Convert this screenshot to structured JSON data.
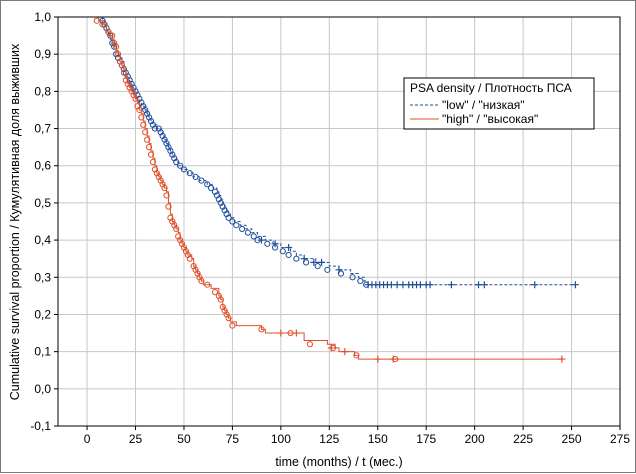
{
  "chart_data": {
    "type": "line",
    "xlabel": "time (months) / t (мес.)",
    "ylabel": "Cumulative survival proportion / Кумулятивная доля выживших",
    "xlim": [
      -15,
      275
    ],
    "ylim": [
      -0.1,
      1.0
    ],
    "x_ticks": [
      "0",
      "25",
      "50",
      "75",
      "100",
      "125",
      "150",
      "175",
      "200",
      "225",
      "250",
      "275"
    ],
    "y_ticks": [
      "-0,1",
      "0,0",
      "0,1",
      "0,2",
      "0,3",
      "0,4",
      "0,5",
      "0,6",
      "0,7",
      "0,8",
      "0,9",
      "1,0"
    ],
    "grid": true,
    "legend": {
      "title": "PSA density / Плотность ПСА",
      "placement": "top-right"
    },
    "series": [
      {
        "name": "\"low\" / \"низкая\"",
        "color": "#1f4e9c",
        "style": "dashed",
        "steps": [
          [
            0,
            1.0
          ],
          [
            8,
            1.0
          ],
          [
            8,
            0.99
          ],
          [
            9,
            0.98
          ],
          [
            10,
            0.96
          ],
          [
            11,
            0.95
          ],
          [
            12,
            0.94
          ],
          [
            13,
            0.93
          ],
          [
            14,
            0.92
          ],
          [
            15,
            0.91
          ],
          [
            16,
            0.9
          ],
          [
            17,
            0.89
          ],
          [
            18,
            0.88
          ],
          [
            19,
            0.86
          ],
          [
            20,
            0.84
          ],
          [
            21,
            0.83
          ],
          [
            22,
            0.82
          ],
          [
            23,
            0.81
          ],
          [
            24,
            0.8
          ],
          [
            25,
            0.79
          ],
          [
            26,
            0.78
          ],
          [
            27,
            0.77
          ],
          [
            28,
            0.76
          ],
          [
            30,
            0.75
          ],
          [
            31,
            0.74
          ],
          [
            32,
            0.73
          ],
          [
            33,
            0.72
          ],
          [
            34,
            0.71
          ],
          [
            36,
            0.7
          ],
          [
            38,
            0.69
          ],
          [
            39,
            0.68
          ],
          [
            40,
            0.67
          ],
          [
            41,
            0.66
          ],
          [
            42,
            0.65
          ],
          [
            43,
            0.64
          ],
          [
            44,
            0.63
          ],
          [
            45,
            0.62
          ],
          [
            46,
            0.61
          ],
          [
            47,
            0.6
          ],
          [
            49,
            0.59
          ],
          [
            52,
            0.58
          ],
          [
            55,
            0.57
          ],
          [
            58,
            0.56
          ],
          [
            62,
            0.55
          ],
          [
            65,
            0.54
          ],
          [
            67,
            0.53
          ],
          [
            68,
            0.52
          ],
          [
            69,
            0.51
          ],
          [
            70,
            0.5
          ],
          [
            71,
            0.49
          ],
          [
            72,
            0.48
          ],
          [
            73,
            0.47
          ],
          [
            74,
            0.46
          ],
          [
            76,
            0.45
          ],
          [
            79,
            0.44
          ],
          [
            82,
            0.43
          ],
          [
            85,
            0.42
          ],
          [
            88,
            0.41
          ],
          [
            92,
            0.4
          ],
          [
            96,
            0.39
          ],
          [
            100,
            0.38
          ],
          [
            105,
            0.37
          ],
          [
            108,
            0.36
          ],
          [
            112,
            0.35
          ],
          [
            118,
            0.34
          ],
          [
            125,
            0.33
          ],
          [
            130,
            0.32
          ],
          [
            136,
            0.31
          ],
          [
            140,
            0.3
          ],
          [
            143,
            0.29
          ],
          [
            145,
            0.28
          ],
          [
            252,
            0.28
          ]
        ],
        "circle_markers": [
          [
            8,
            0.99
          ],
          [
            9,
            0.98
          ],
          [
            10,
            0.97
          ],
          [
            11,
            0.96
          ],
          [
            12,
            0.95
          ],
          [
            13,
            0.93
          ],
          [
            14,
            0.92
          ],
          [
            15,
            0.9
          ],
          [
            16,
            0.89
          ],
          [
            17,
            0.88
          ],
          [
            18,
            0.87
          ],
          [
            19,
            0.86
          ],
          [
            20,
            0.85
          ],
          [
            21,
            0.84
          ],
          [
            22,
            0.83
          ],
          [
            23,
            0.82
          ],
          [
            24,
            0.81
          ],
          [
            25,
            0.8
          ],
          [
            26,
            0.79
          ],
          [
            27,
            0.78
          ],
          [
            28,
            0.77
          ],
          [
            29,
            0.76
          ],
          [
            30,
            0.75
          ],
          [
            31,
            0.74
          ],
          [
            32,
            0.73
          ],
          [
            33,
            0.72
          ],
          [
            34,
            0.71
          ],
          [
            35,
            0.7
          ],
          [
            37,
            0.7
          ],
          [
            38,
            0.69
          ],
          [
            39,
            0.68
          ],
          [
            40,
            0.67
          ],
          [
            41,
            0.66
          ],
          [
            42,
            0.65
          ],
          [
            43,
            0.64
          ],
          [
            44,
            0.63
          ],
          [
            45,
            0.62
          ],
          [
            46,
            0.61
          ],
          [
            48,
            0.6
          ],
          [
            50,
            0.59
          ],
          [
            53,
            0.58
          ],
          [
            56,
            0.57
          ],
          [
            59,
            0.56
          ],
          [
            62,
            0.55
          ],
          [
            64,
            0.54
          ],
          [
            66,
            0.53
          ],
          [
            67,
            0.52
          ],
          [
            68,
            0.51
          ],
          [
            69,
            0.5
          ],
          [
            70,
            0.49
          ],
          [
            71,
            0.48
          ],
          [
            72,
            0.47
          ],
          [
            73,
            0.46
          ],
          [
            75,
            0.45
          ],
          [
            77,
            0.44
          ],
          [
            80,
            0.43
          ],
          [
            83,
            0.42
          ],
          [
            86,
            0.41
          ],
          [
            88,
            0.4
          ],
          [
            93,
            0.39
          ],
          [
            97,
            0.38
          ],
          [
            101,
            0.37
          ],
          [
            104,
            0.36
          ],
          [
            108,
            0.35
          ],
          [
            113,
            0.34
          ],
          [
            119,
            0.33
          ],
          [
            124,
            0.32
          ],
          [
            131,
            0.31
          ],
          [
            137,
            0.3
          ],
          [
            141,
            0.29
          ],
          [
            144,
            0.28
          ]
        ],
        "censored": [
          [
            90,
            0.4
          ],
          [
            97,
            0.39
          ],
          [
            104,
            0.38
          ],
          [
            112,
            0.35
          ],
          [
            117,
            0.34
          ],
          [
            121,
            0.34
          ],
          [
            130,
            0.32
          ],
          [
            145,
            0.28
          ],
          [
            147,
            0.28
          ],
          [
            149,
            0.28
          ],
          [
            151,
            0.28
          ],
          [
            153,
            0.28
          ],
          [
            155,
            0.28
          ],
          [
            157,
            0.28
          ],
          [
            160,
            0.28
          ],
          [
            163,
            0.28
          ],
          [
            166,
            0.28
          ],
          [
            168,
            0.28
          ],
          [
            170,
            0.28
          ],
          [
            172,
            0.28
          ],
          [
            175,
            0.28
          ],
          [
            177,
            0.28
          ],
          [
            188,
            0.28
          ],
          [
            202,
            0.28
          ],
          [
            205,
            0.28
          ],
          [
            231,
            0.28
          ],
          [
            252,
            0.28
          ]
        ]
      },
      {
        "name": "\"high\" / \"высокая\"",
        "color": "#e0502a",
        "style": "solid",
        "steps": [
          [
            3,
            1.0
          ],
          [
            6,
            1.0
          ],
          [
            6,
            0.99
          ],
          [
            8,
            0.98
          ],
          [
            10,
            0.96
          ],
          [
            12,
            0.95
          ],
          [
            13,
            0.94
          ],
          [
            14,
            0.93
          ],
          [
            15,
            0.91
          ],
          [
            16,
            0.9
          ],
          [
            17,
            0.88
          ],
          [
            18,
            0.87
          ],
          [
            19,
            0.86
          ],
          [
            20,
            0.84
          ],
          [
            21,
            0.82
          ],
          [
            22,
            0.81
          ],
          [
            23,
            0.8
          ],
          [
            24,
            0.79
          ],
          [
            25,
            0.78
          ],
          [
            26,
            0.77
          ],
          [
            27,
            0.75
          ],
          [
            28,
            0.74
          ],
          [
            29,
            0.72
          ],
          [
            30,
            0.7
          ],
          [
            31,
            0.68
          ],
          [
            32,
            0.66
          ],
          [
            33,
            0.64
          ],
          [
            34,
            0.62
          ],
          [
            35,
            0.6
          ],
          [
            36,
            0.58
          ],
          [
            37,
            0.57
          ],
          [
            38,
            0.56
          ],
          [
            39,
            0.55
          ],
          [
            40,
            0.54
          ],
          [
            41,
            0.53
          ],
          [
            42,
            0.5
          ],
          [
            43,
            0.47
          ],
          [
            44,
            0.45
          ],
          [
            45,
            0.44
          ],
          [
            46,
            0.43
          ],
          [
            47,
            0.42
          ],
          [
            48,
            0.4
          ],
          [
            49,
            0.39
          ],
          [
            50,
            0.38
          ],
          [
            51,
            0.37
          ],
          [
            52,
            0.36
          ],
          [
            54,
            0.35
          ],
          [
            55,
            0.33
          ],
          [
            56,
            0.32
          ],
          [
            57,
            0.31
          ],
          [
            58,
            0.3
          ],
          [
            59,
            0.29
          ],
          [
            60,
            0.28
          ],
          [
            64,
            0.27
          ],
          [
            68,
            0.25
          ],
          [
            69,
            0.24
          ],
          [
            70,
            0.22
          ],
          [
            71,
            0.21
          ],
          [
            72,
            0.2
          ],
          [
            73,
            0.19
          ],
          [
            74,
            0.18
          ],
          [
            77,
            0.17
          ],
          [
            90,
            0.16
          ],
          [
            92,
            0.15
          ],
          [
            105,
            0.15
          ],
          [
            112,
            0.13
          ],
          [
            124,
            0.12
          ],
          [
            128,
            0.11
          ],
          [
            130,
            0.1
          ],
          [
            138,
            0.09
          ],
          [
            140,
            0.08
          ],
          [
            245,
            0.08
          ]
        ],
        "circle_markers": [
          [
            5,
            0.99
          ],
          [
            8,
            0.98
          ],
          [
            11,
            0.96
          ],
          [
            13,
            0.95
          ],
          [
            14,
            0.93
          ],
          [
            15,
            0.92
          ],
          [
            16,
            0.9
          ],
          [
            17,
            0.88
          ],
          [
            18,
            0.87
          ],
          [
            19,
            0.85
          ],
          [
            20,
            0.83
          ],
          [
            21,
            0.82
          ],
          [
            22,
            0.81
          ],
          [
            23,
            0.8
          ],
          [
            24,
            0.79
          ],
          [
            25,
            0.78
          ],
          [
            26,
            0.76
          ],
          [
            27,
            0.75
          ],
          [
            28,
            0.73
          ],
          [
            29,
            0.71
          ],
          [
            30,
            0.69
          ],
          [
            31,
            0.67
          ],
          [
            32,
            0.65
          ],
          [
            33,
            0.63
          ],
          [
            34,
            0.61
          ],
          [
            35,
            0.59
          ],
          [
            36,
            0.58
          ],
          [
            37,
            0.57
          ],
          [
            38,
            0.56
          ],
          [
            39,
            0.55
          ],
          [
            40,
            0.54
          ],
          [
            41,
            0.52
          ],
          [
            42,
            0.49
          ],
          [
            43,
            0.46
          ],
          [
            44,
            0.45
          ],
          [
            45,
            0.44
          ],
          [
            46,
            0.43
          ],
          [
            47,
            0.41
          ],
          [
            48,
            0.4
          ],
          [
            49,
            0.39
          ],
          [
            50,
            0.38
          ],
          [
            51,
            0.37
          ],
          [
            52,
            0.36
          ],
          [
            53,
            0.35
          ],
          [
            55,
            0.33
          ],
          [
            56,
            0.32
          ],
          [
            57,
            0.31
          ],
          [
            58,
            0.3
          ],
          [
            59,
            0.29
          ],
          [
            62,
            0.28
          ],
          [
            66,
            0.26
          ],
          [
            68,
            0.25
          ],
          [
            69,
            0.24
          ],
          [
            70,
            0.22
          ],
          [
            71,
            0.21
          ],
          [
            72,
            0.2
          ],
          [
            73,
            0.19
          ],
          [
            75,
            0.17
          ],
          [
            90,
            0.16
          ],
          [
            105,
            0.15
          ],
          [
            115,
            0.12
          ],
          [
            127,
            0.11
          ],
          [
            139,
            0.09
          ],
          [
            159,
            0.08
          ]
        ],
        "censored": [
          [
            100,
            0.15
          ],
          [
            108,
            0.15
          ],
          [
            126,
            0.11
          ],
          [
            133,
            0.1
          ],
          [
            150,
            0.08
          ],
          [
            158,
            0.08
          ],
          [
            245,
            0.08
          ]
        ]
      }
    ]
  }
}
